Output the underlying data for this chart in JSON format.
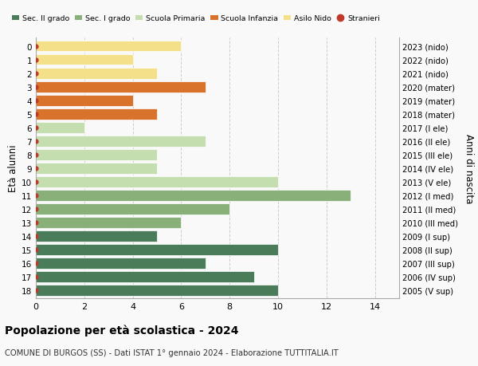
{
  "ages": [
    18,
    17,
    16,
    15,
    14,
    13,
    12,
    11,
    10,
    9,
    8,
    7,
    6,
    5,
    4,
    3,
    2,
    1,
    0
  ],
  "right_labels": [
    "2005 (V sup)",
    "2006 (IV sup)",
    "2007 (III sup)",
    "2008 (II sup)",
    "2009 (I sup)",
    "2010 (III med)",
    "2011 (II med)",
    "2012 (I med)",
    "2013 (V ele)",
    "2014 (IV ele)",
    "2015 (III ele)",
    "2016 (II ele)",
    "2017 (I ele)",
    "2018 (mater)",
    "2019 (mater)",
    "2020 (mater)",
    "2021 (nido)",
    "2022 (nido)",
    "2023 (nido)"
  ],
  "values": [
    10,
    9,
    7,
    10,
    5,
    6,
    8,
    13,
    10,
    5,
    5,
    7,
    2,
    5,
    4,
    7,
    5,
    4,
    6
  ],
  "bar_colors": [
    "#4a7c59",
    "#4a7c59",
    "#4a7c59",
    "#4a7c59",
    "#4a7c59",
    "#8ab07a",
    "#8ab07a",
    "#8ab07a",
    "#c5deb0",
    "#c5deb0",
    "#c5deb0",
    "#c5deb0",
    "#c5deb0",
    "#d9722a",
    "#d9722a",
    "#d9722a",
    "#f5e08a",
    "#f5e08a",
    "#f5e08a"
  ],
  "legend_labels": [
    "Sec. II grado",
    "Sec. I grado",
    "Scuola Primaria",
    "Scuola Infanzia",
    "Asilo Nido",
    "Stranieri"
  ],
  "legend_colors": [
    "#4a7c59",
    "#8ab07a",
    "#c5deb0",
    "#d9722a",
    "#f5e08a",
    "#c0392b"
  ],
  "stranieri_color": "#c0392b",
  "title_bold": "Popolazione per età scolastica - 2024",
  "subtitle": "COMUNE DI BURGOS (SS) - Dati ISTAT 1° gennaio 2024 - Elaborazione TUTTITALIA.IT",
  "right_ylabel": "Anni di nascita",
  "left_ylabel": "Età alunni",
  "xlim": [
    0,
    15
  ],
  "xticks": [
    0,
    2,
    4,
    6,
    8,
    10,
    12,
    14
  ],
  "background_color": "#f9f9f9",
  "grid_color": "#cccccc"
}
